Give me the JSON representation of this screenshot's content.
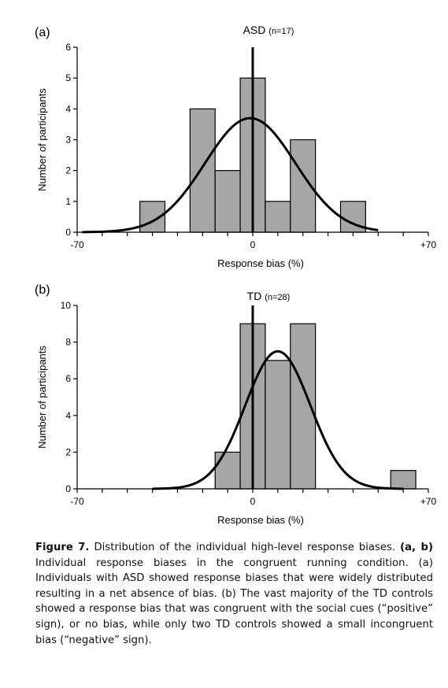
{
  "chart_data": [
    {
      "type": "bar",
      "panel_label": "(a)",
      "title": "ASD",
      "title_note": "(n=17)",
      "xlabel": "Response bias (%)",
      "ylabel": "Number of participants",
      "xlim": [
        -70,
        70
      ],
      "ylim": [
        0,
        6
      ],
      "yticks": [
        "0",
        "1",
        "2",
        "3",
        "4",
        "5",
        "6"
      ],
      "xtick_labels": [
        {
          "value": -70,
          "label": "-70"
        },
        {
          "value": 0,
          "label": "0"
        },
        {
          "value": 70,
          "label": "+70"
        }
      ],
      "bins": [
        {
          "start": -45,
          "end": -35,
          "count": 1
        },
        {
          "start": -25,
          "end": -15,
          "count": 4
        },
        {
          "start": -15,
          "end": -5,
          "count": 2
        },
        {
          "start": -5,
          "end": 5,
          "count": 5
        },
        {
          "start": 5,
          "end": 15,
          "count": 1
        },
        {
          "start": 15,
          "end": 25,
          "count": 3
        },
        {
          "start": 35,
          "end": 45,
          "count": 1
        }
      ],
      "fit_curve": {
        "type": "normal",
        "peak": 3.7,
        "mean": -1,
        "sd": 18,
        "range": [
          -68,
          50
        ]
      }
    },
    {
      "type": "bar",
      "panel_label": "(b)",
      "title": "TD",
      "title_note": "(n=28)",
      "xlabel": "Response bias (%)",
      "ylabel": "Number of participants",
      "xlim": [
        -70,
        70
      ],
      "ylim": [
        0,
        10
      ],
      "yticks": [
        "0",
        "2",
        "4",
        "6",
        "8",
        "10"
      ],
      "xtick_labels": [
        {
          "value": -70,
          "label": "-70"
        },
        {
          "value": 0,
          "label": "0"
        },
        {
          "value": 70,
          "label": "+70"
        }
      ],
      "bins": [
        {
          "start": -15,
          "end": -5,
          "count": 2
        },
        {
          "start": -5,
          "end": 5,
          "count": 9
        },
        {
          "start": 5,
          "end": 15,
          "count": 7
        },
        {
          "start": 15,
          "end": 25,
          "count": 9
        },
        {
          "start": 55,
          "end": 65,
          "count": 1
        }
      ],
      "fit_curve": {
        "type": "normal",
        "peak": 7.5,
        "mean": 10,
        "sd": 13,
        "range": [
          -40,
          60
        ]
      }
    }
  ],
  "caption": {
    "label": "Figure 7.",
    "line1": "Distribution of the individual high-level response biases.",
    "bold_refs": "(a, b)",
    "text": "Individual response biases in the congruent running condition. (a) Individuals with ASD showed response biases that were widely distributed resulting in a net absence of bias. (b) The vast majority of the TD controls showed a response bias that was congruent with the social cues (“positive” sign), or no bias, while only two TD controls showed a small incongruent bias (“negative” sign)."
  }
}
